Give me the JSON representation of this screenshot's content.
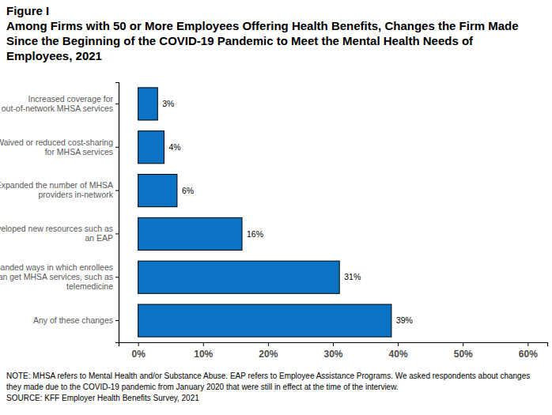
{
  "chart_data": {
    "type": "bar",
    "orientation": "horizontal",
    "title": "Figure I",
    "subtitle": "Among Firms with 50 or More Employees Offering Health Benefits, Changes the Firm Made Since the Beginning of the COVID-19 Pandemic to Meet the Mental Health Needs of Employees, 2021",
    "categories": [
      "Increased coverage for out-of-network MHSA services",
      "Waived or reduced cost-sharing for MHSA services",
      "Expanded the number of MHSA providers in-network",
      "Developed new resources such as an EAP",
      "Expanded ways in which enrollees can get MHSA services, such as telemedicine",
      "Any of these changes"
    ],
    "values": [
      3,
      4,
      6,
      16,
      31,
      39
    ],
    "value_labels": [
      "3%",
      "4%",
      "6%",
      "16%",
      "31%",
      "39%"
    ],
    "data_labels": true,
    "color": "#0b72c4",
    "xlim": [
      -3,
      63
    ],
    "xticks": [
      {
        "value": 0,
        "label": "0%"
      },
      {
        "value": 10,
        "label": "10%"
      },
      {
        "value": 20,
        "label": "20%"
      },
      {
        "value": 30,
        "label": "30%"
      },
      {
        "value": 40,
        "label": "40%"
      },
      {
        "value": 50,
        "label": "50%"
      },
      {
        "value": 60,
        "label": "60%"
      }
    ],
    "grid": false,
    "annotations": [
      "NOTE: MHSA refers to Mental Health and/or Substance Abuse.  EAP refers to Employee Assistance Programs.  We asked respondents about changes they made due to the COVID-19 pandemic from January 2020 that were still in effect at the time of the interview.",
      "SOURCE: KFF Employer Health Benefits Survey, 2021"
    ]
  }
}
